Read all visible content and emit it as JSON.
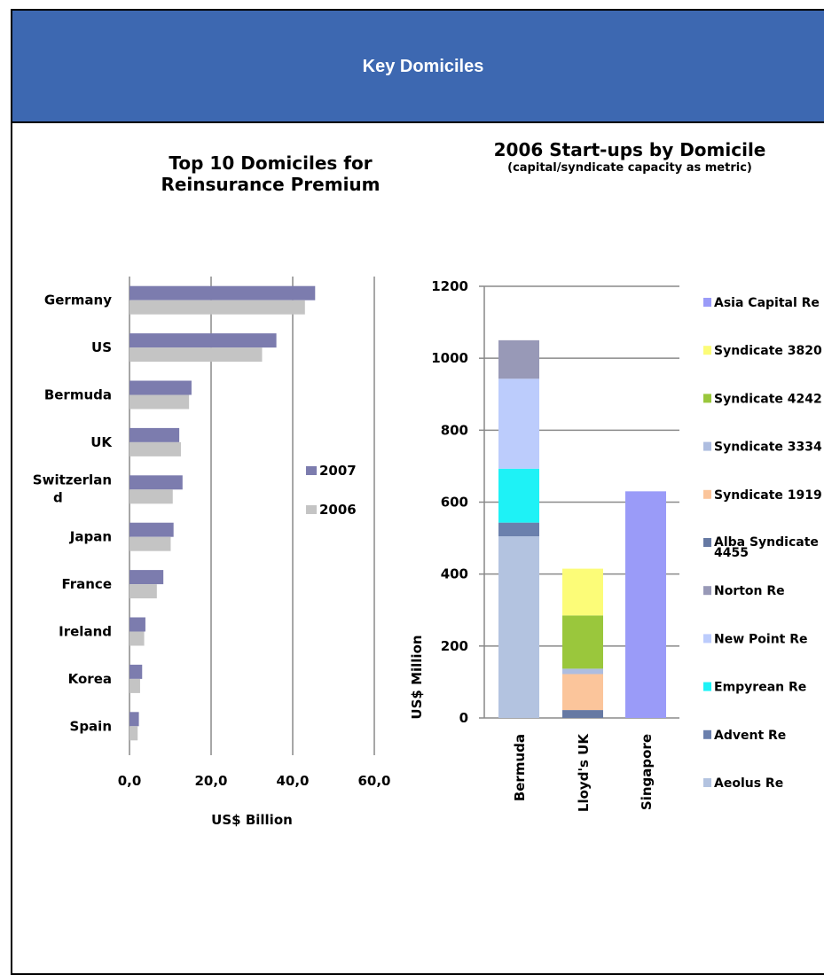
{
  "header": {
    "title": "Key Domiciles"
  },
  "chart_data": [
    {
      "type": "bar",
      "orientation": "horizontal",
      "title": "Top 10 Domiciles for Reinsurance Premium",
      "xlabel": "US$ Billion",
      "ylabel": "",
      "categories": [
        "Germany",
        "US",
        "Bermuda",
        "UK",
        "Switzerland",
        "Japan",
        "France",
        "Ireland",
        "Korea",
        "Spain"
      ],
      "series": [
        {
          "name": "2007",
          "color": "#7c7cae",
          "values": [
            45.5,
            36.0,
            15.2,
            12.2,
            13.0,
            10.8,
            8.3,
            3.9,
            3.1,
            2.3
          ]
        },
        {
          "name": "2006",
          "color": "#c4c4c4",
          "values": [
            43.0,
            32.5,
            14.6,
            12.6,
            10.6,
            10.1,
            6.7,
            3.6,
            2.6,
            2.0
          ]
        }
      ],
      "xlim": [
        0,
        60
      ],
      "x_tick_labels": [
        "0,0",
        "20,0",
        "40,0",
        "60,0"
      ],
      "grid": true,
      "legend": "right"
    },
    {
      "type": "bar",
      "stacked": true,
      "title": "2006 Start-ups by Domicile",
      "subtitle": "(capital/syndicate capacity as metric)",
      "ylabel": "US$ Million",
      "xlabel": "",
      "categories": [
        "Bermuda",
        "Lloyd's UK",
        "Singapore"
      ],
      "ylim": [
        0,
        1200
      ],
      "y_tick_labels": [
        "0",
        "200",
        "400",
        "600",
        "800",
        "1000",
        "1200"
      ],
      "grid": true,
      "legend": "right",
      "series": [
        {
          "name": "Aeolus Re",
          "color": "#b3c3e0",
          "values": [
            505,
            0,
            0
          ]
        },
        {
          "name": "Advent Re",
          "color": "#6b80ad",
          "values": [
            38,
            0,
            0
          ]
        },
        {
          "name": "Empyrean Re",
          "color": "#1ef2f6",
          "values": [
            150,
            0,
            0
          ]
        },
        {
          "name": "New Point Re",
          "color": "#bcccfc",
          "values": [
            250,
            0,
            0
          ]
        },
        {
          "name": "Norton Re",
          "color": "#9899b7",
          "values": [
            107,
            0,
            0
          ]
        },
        {
          "name": "Alba Syndicate 4455",
          "color": "#6679a3",
          "values": [
            0,
            22,
            0
          ]
        },
        {
          "name": "Syndicate 1919",
          "color": "#fbc59b",
          "values": [
            0,
            100,
            0
          ]
        },
        {
          "name": "Syndicate 3334",
          "color": "#aebde0",
          "values": [
            0,
            15,
            0
          ]
        },
        {
          "name": "Syndicate 4242",
          "color": "#9ac73c",
          "values": [
            0,
            148,
            0
          ]
        },
        {
          "name": "Syndicate 3820",
          "color": "#fcfc78",
          "values": [
            0,
            130,
            0
          ]
        },
        {
          "name": "Asia Capital Re",
          "color": "#9a9bf8",
          "values": [
            0,
            0,
            630
          ]
        }
      ],
      "legend_order": [
        "Asia Capital Re",
        "Syndicate 3820",
        "Syndicate 4242",
        "Syndicate 3334",
        "Syndicate 1919",
        "Alba Syndicate 4455",
        "Norton Re",
        "New Point Re",
        "Empyrean Re",
        "Advent Re",
        "Aeolus Re"
      ]
    }
  ]
}
